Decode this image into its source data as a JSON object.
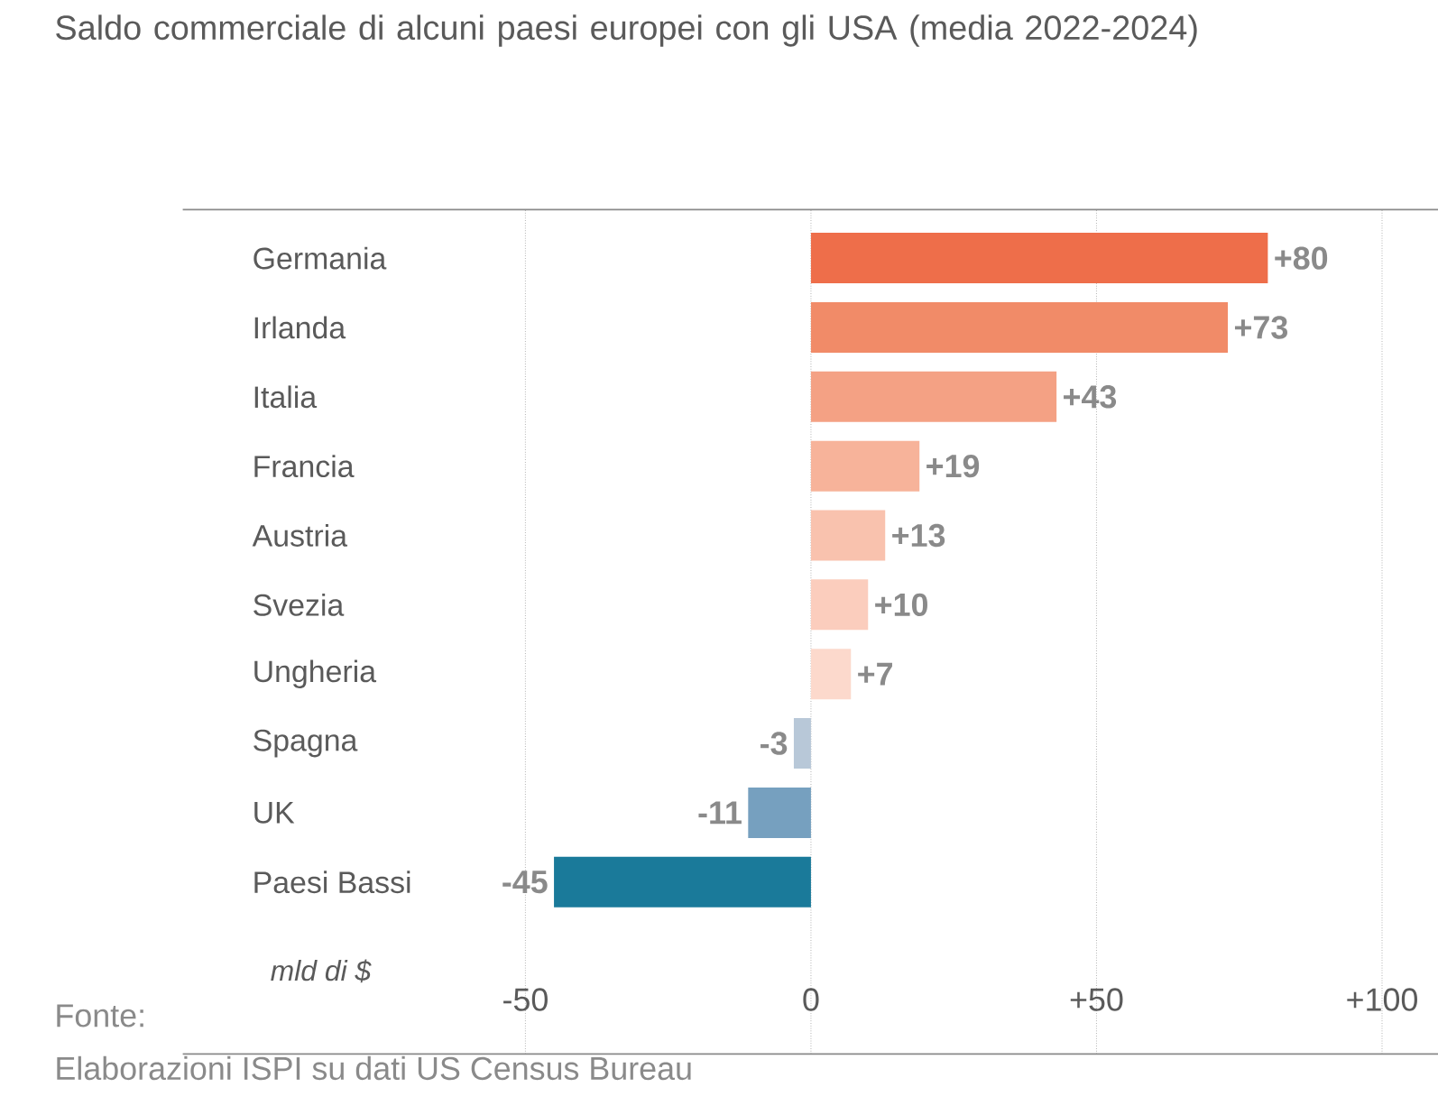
{
  "chart_data": {
    "type": "bar",
    "orientation": "horizontal",
    "title": "Saldo commerciale di alcuni paesi europei con gli USA (media 2022-2024)",
    "xlabel": "mld di $",
    "categories": [
      "Germania",
      "Irlanda",
      "Italia",
      "Francia",
      "Austria",
      "Svezia",
      "Ungheria",
      "Spagna",
      "UK",
      "Paesi Bassi"
    ],
    "values": [
      80,
      73,
      43,
      19,
      13,
      10,
      7,
      -3,
      -11,
      -45
    ],
    "value_labels": [
      "+80",
      "+73",
      "+43",
      "+19",
      "+13",
      "+10",
      "+7",
      "-3",
      "-11",
      "-45"
    ],
    "colors": [
      "#ee6e4a",
      "#f18b68",
      "#f4a184",
      "#f7b39a",
      "#f9c2ae",
      "#fbcdbd",
      "#fcd9cc",
      "#b8c8d8",
      "#76a0bf",
      "#1a7a9a"
    ],
    "xlim": [
      -110,
      120
    ],
    "xticks": [
      -50,
      0,
      {
        "value": 50,
        "label": "+50"
      },
      {
        "value": 100,
        "label": "+100"
      }
    ],
    "grid": "x",
    "annotations": [
      "Fonte:",
      "Elaborazioni ISPI su dati US Census Bureau"
    ]
  }
}
